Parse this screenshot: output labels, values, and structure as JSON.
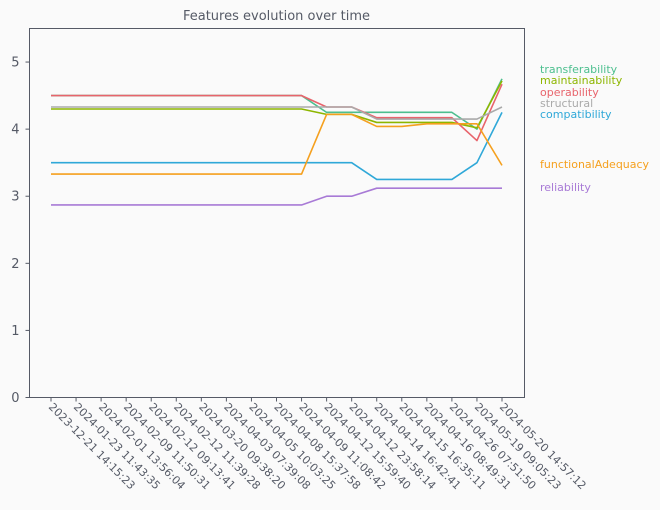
{
  "chart_data": {
    "type": "line",
    "title": "Features evolution over time",
    "xlabel": "",
    "ylabel": "",
    "ylim": [
      0,
      5.5
    ],
    "yticks": [
      0,
      1,
      2,
      3,
      4,
      5
    ],
    "grid": false,
    "legend_placement": "right",
    "x": [
      "2023-12-21 14:15:23",
      "2024-01-23 11:43:35",
      "2024-02-01 13:56:04",
      "2024-02-09 11:50:31",
      "2024-02-12 09:13:41",
      "2024-02-12 11:39:28",
      "2024-03-20 09:38:20",
      "2024-04-03 07:39:08",
      "2024-04-05 10:03:25",
      "2024-04-08 15:37:58",
      "2024-04-09 11:08:42",
      "2024-04-12 15:59:40",
      "2024-04-12 23:58:14",
      "2024-04-14 16:42:41",
      "2024-04-15 16:35:11",
      "2024-04-16 08:49:31",
      "2024-04-26 07:51:50",
      "2024-05-19 09:05:23",
      "2024-05-20 14:57:12"
    ],
    "series": [
      {
        "name": "transferability",
        "color": "#4dbf8f",
        "values": [
          4.5,
          4.5,
          4.5,
          4.5,
          4.5,
          4.5,
          4.5,
          4.5,
          4.5,
          4.5,
          4.5,
          4.25,
          4.25,
          4.25,
          4.25,
          4.25,
          4.25,
          4.0,
          4.75
        ]
      },
      {
        "name": "maintainability",
        "color": "#8db600",
        "values": [
          4.3,
          4.3,
          4.3,
          4.3,
          4.3,
          4.3,
          4.3,
          4.3,
          4.3,
          4.3,
          4.3,
          4.22,
          4.22,
          4.1,
          4.1,
          4.1,
          4.1,
          4.02,
          4.72
        ]
      },
      {
        "name": "operability",
        "color": "#e8646c",
        "values": [
          4.5,
          4.5,
          4.5,
          4.5,
          4.5,
          4.5,
          4.5,
          4.5,
          4.5,
          4.5,
          4.5,
          4.33,
          4.33,
          4.17,
          4.17,
          4.17,
          4.17,
          3.83,
          4.67
        ]
      },
      {
        "name": "structural",
        "color": "#aaaaaa",
        "values": [
          4.33,
          4.33,
          4.33,
          4.33,
          4.33,
          4.33,
          4.33,
          4.33,
          4.33,
          4.33,
          4.33,
          4.33,
          4.33,
          4.15,
          4.15,
          4.15,
          4.15,
          4.15,
          4.33
        ]
      },
      {
        "name": "compatibility",
        "color": "#2fa8d8",
        "values": [
          3.5,
          3.5,
          3.5,
          3.5,
          3.5,
          3.5,
          3.5,
          3.5,
          3.5,
          3.5,
          3.5,
          3.5,
          3.5,
          3.25,
          3.25,
          3.25,
          3.25,
          3.5,
          4.25
        ]
      },
      {
        "name": "functionalAdequacy",
        "color": "#f5a01e",
        "values": [
          3.33,
          3.33,
          3.33,
          3.33,
          3.33,
          3.33,
          3.33,
          3.33,
          3.33,
          3.33,
          3.33,
          4.22,
          4.22,
          4.04,
          4.04,
          4.08,
          4.08,
          4.08,
          3.46
        ]
      },
      {
        "name": "reliability",
        "color": "#a87ad6",
        "values": [
          2.87,
          2.87,
          2.87,
          2.87,
          2.87,
          2.87,
          2.87,
          2.87,
          2.87,
          2.87,
          2.87,
          3.0,
          3.0,
          3.12,
          3.12,
          3.12,
          3.12,
          3.12,
          3.12
        ]
      }
    ]
  }
}
